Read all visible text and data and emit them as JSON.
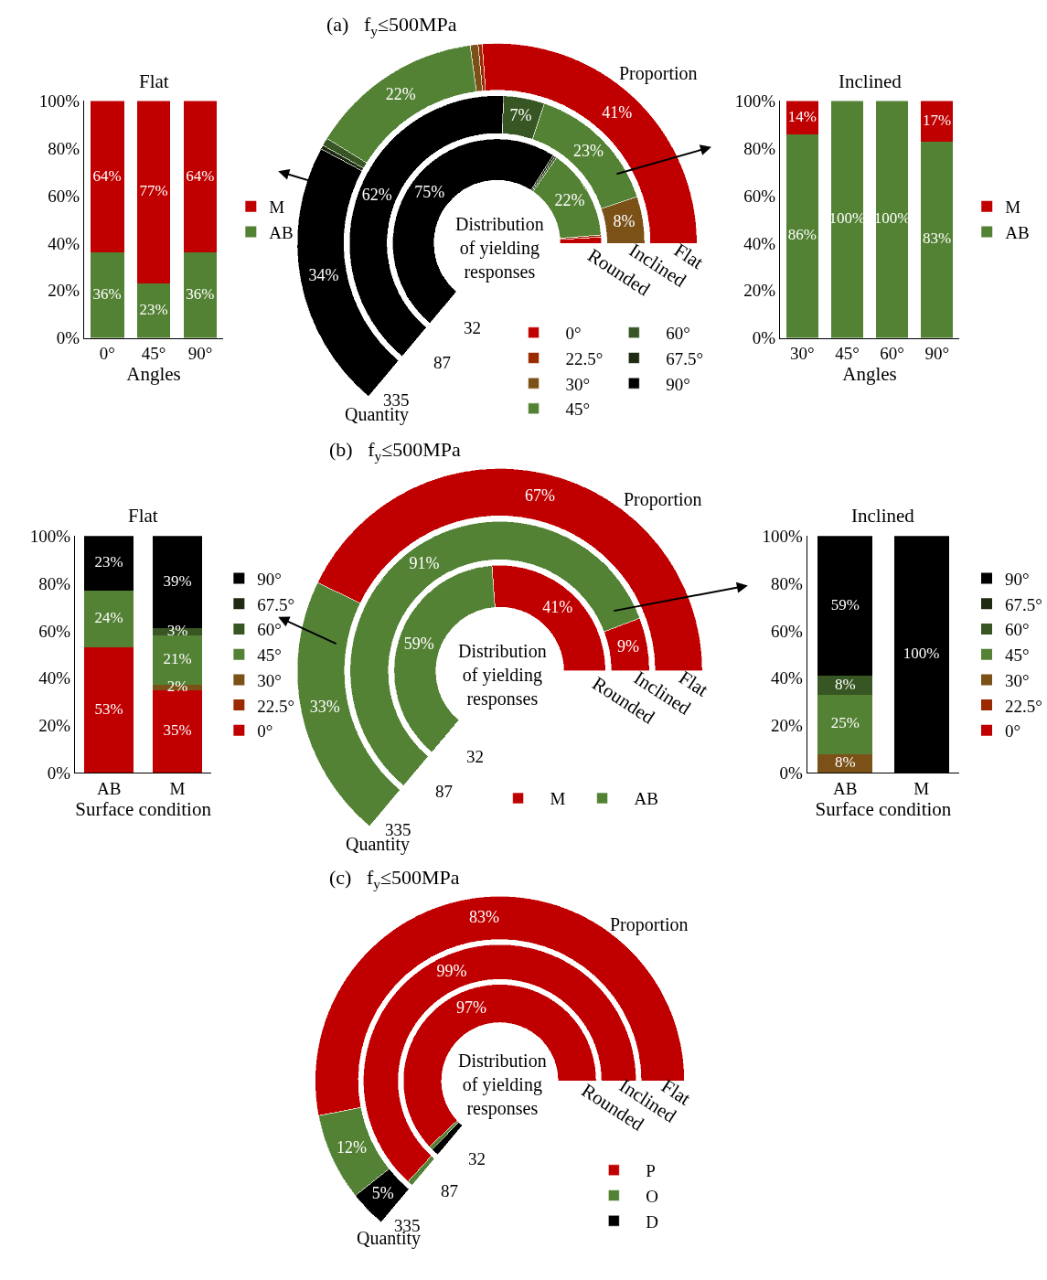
{
  "chart_data": [
    {
      "type": "bar",
      "title": "Flat",
      "xlabel": "Angles",
      "categories": [
        "0°",
        "45°",
        "90°"
      ],
      "stacked": true,
      "legend": "right",
      "ylim": [
        0,
        100
      ],
      "yticks": [
        {
          "value": 0,
          "label": "0%"
        },
        {
          "value": 20,
          "label": "20%"
        },
        {
          "value": 40,
          "label": "40%"
        },
        {
          "value": 60,
          "label": "60%"
        },
        {
          "value": 80,
          "label": "80%"
        },
        {
          "value": 100,
          "label": "100%"
        }
      ],
      "series": [
        {
          "name": "AB",
          "color": "#548235",
          "values": [
            36,
            23,
            36
          ],
          "value_labels": [
            "36%",
            "23%",
            "36%"
          ]
        },
        {
          "name": "M",
          "color": "#c00000",
          "values": [
            64,
            77,
            64
          ],
          "value_labels": [
            "64%",
            "77%",
            "64%"
          ]
        }
      ]
    },
    {
      "type": "donut",
      "title": "(a)   f$_{y}$≤500MPa",
      "legend": "bottom right",
      "categories": [
        "0°",
        "22.5°",
        "30°",
        "45°",
        "60°",
        "67.5°",
        "90°"
      ],
      "colors": [
        "#c00000",
        "#9c2a00",
        "#7b5118",
        "#548235",
        "#375623",
        "#1e2a12",
        "#000000"
      ],
      "annotations": [
        "Proportion",
        "Quantity",
        "Distribution\nof yielding\nresponses",
        "335",
        "87",
        "32"
      ],
      "series": [
        {
          "name": "Flat",
          "values": [
            41,
            0.5,
            1,
            22,
            1,
            0.5,
            34
          ],
          "value_labels": [
            "41%",
            null,
            null,
            "22%",
            null,
            null,
            "34%"
          ]
        },
        {
          "name": "Inclined",
          "values": [
            0,
            0,
            8,
            23,
            7,
            0,
            62
          ],
          "value_labels": [
            null,
            null,
            "8%",
            "23%",
            "7%",
            null,
            "62%"
          ]
        },
        {
          "name": "Rounded",
          "values": [
            1.5,
            0.5,
            0,
            22,
            0.5,
            0.5,
            75
          ],
          "value_labels": [
            null,
            null,
            null,
            "22%",
            null,
            null,
            "75%"
          ]
        }
      ]
    },
    {
      "type": "bar",
      "title": "Inclined",
      "xlabel": "Angles",
      "categories": [
        "30°",
        "45°",
        "60°",
        "90°"
      ],
      "stacked": true,
      "legend": "right",
      "ylim": [
        0,
        100
      ],
      "yticks": [
        {
          "value": 0,
          "label": "0%"
        },
        {
          "value": 20,
          "label": "20%"
        },
        {
          "value": 40,
          "label": "40%"
        },
        {
          "value": 60,
          "label": "60%"
        },
        {
          "value": 80,
          "label": "80%"
        },
        {
          "value": 100,
          "label": "100%"
        }
      ],
      "series": [
        {
          "name": "AB",
          "color": "#548235",
          "values": [
            86,
            100,
            100,
            83
          ],
          "value_labels": [
            "86%",
            "100%",
            "100%",
            "83%"
          ]
        },
        {
          "name": "M",
          "color": "#c00000",
          "values": [
            14,
            0,
            0,
            17
          ],
          "value_labels": [
            "14%",
            null,
            null,
            "17%"
          ]
        }
      ]
    },
    {
      "type": "bar",
      "title": "Flat",
      "xlabel": "Surface condition",
      "categories": [
        "AB",
        "M"
      ],
      "stacked": true,
      "legend": "right",
      "ylim": [
        0,
        100
      ],
      "yticks": [
        {
          "value": 0,
          "label": "0%"
        },
        {
          "value": 20,
          "label": "20%"
        },
        {
          "value": 40,
          "label": "40%"
        },
        {
          "value": 60,
          "label": "60%"
        },
        {
          "value": 80,
          "label": "80%"
        },
        {
          "value": 100,
          "label": "100%"
        }
      ],
      "series": [
        {
          "name": "0°",
          "color": "#c00000",
          "values": [
            53,
            35
          ],
          "value_labels": [
            "53%",
            "35%"
          ]
        },
        {
          "name": "22.5°",
          "color": "#9c2a00",
          "values": [
            0,
            0
          ],
          "value_labels": [
            null,
            null
          ]
        },
        {
          "name": "30°",
          "color": "#7b5118",
          "values": [
            0,
            2
          ],
          "value_labels": [
            null,
            "2%"
          ]
        },
        {
          "name": "45°",
          "color": "#548235",
          "values": [
            24,
            21
          ],
          "value_labels": [
            "24%",
            "21%"
          ]
        },
        {
          "name": "60°",
          "color": "#375623",
          "values": [
            0,
            3
          ],
          "value_labels": [
            null,
            "3%"
          ]
        },
        {
          "name": "67.5°",
          "color": "#1e2a12",
          "values": [
            0,
            0
          ],
          "value_labels": [
            null,
            null
          ]
        },
        {
          "name": "90°",
          "color": "#000000",
          "values": [
            23,
            39
          ],
          "value_labels": [
            "23%",
            "39%"
          ]
        }
      ]
    },
    {
      "type": "donut",
      "title": "(b)   f$_{y}$≤500MPa",
      "legend": "bottom",
      "categories": [
        "M",
        "AB"
      ],
      "colors": [
        "#c00000",
        "#548235"
      ],
      "annotations": [
        "Proportion",
        "Quantity",
        "Distribution\nof yielding\nresponses",
        "335",
        "87",
        "32"
      ],
      "series": [
        {
          "name": "Flat",
          "values": [
            67,
            33
          ],
          "value_labels": [
            "67%",
            "33%"
          ]
        },
        {
          "name": "Inclined",
          "values": [
            9,
            91
          ],
          "value_labels": [
            "9%",
            "91%"
          ]
        },
        {
          "name": "Rounded",
          "values": [
            41,
            59
          ],
          "value_labels": [
            "41%",
            "59%"
          ]
        }
      ]
    },
    {
      "type": "bar",
      "title": "Inclined",
      "xlabel": "Surface condition",
      "categories": [
        "AB",
        "M"
      ],
      "stacked": true,
      "legend": "right",
      "ylim": [
        0,
        100
      ],
      "yticks": [
        {
          "value": 0,
          "label": "0%"
        },
        {
          "value": 20,
          "label": "20%"
        },
        {
          "value": 40,
          "label": "40%"
        },
        {
          "value": 60,
          "label": "60%"
        },
        {
          "value": 80,
          "label": "80%"
        },
        {
          "value": 100,
          "label": "100%"
        }
      ],
      "series": [
        {
          "name": "0°",
          "color": "#c00000",
          "values": [
            0,
            0
          ],
          "value_labels": [
            null,
            null
          ]
        },
        {
          "name": "22.5°",
          "color": "#9c2a00",
          "values": [
            0,
            0
          ],
          "value_labels": [
            null,
            null
          ]
        },
        {
          "name": "30°",
          "color": "#7b5118",
          "values": [
            8,
            0
          ],
          "value_labels": [
            "8%",
            null
          ]
        },
        {
          "name": "45°",
          "color": "#548235",
          "values": [
            25,
            0
          ],
          "value_labels": [
            "25%",
            null
          ]
        },
        {
          "name": "60°",
          "color": "#375623",
          "values": [
            8,
            0
          ],
          "value_labels": [
            "8%",
            null
          ]
        },
        {
          "name": "67.5°",
          "color": "#1e2a12",
          "values": [
            0,
            0
          ],
          "value_labels": [
            null,
            null
          ]
        },
        {
          "name": "90°",
          "color": "#000000",
          "values": [
            59,
            100
          ],
          "value_labels": [
            "59%",
            "100%"
          ]
        }
      ]
    },
    {
      "type": "donut",
      "title": "(c)   f$_{y}$≤500MPa",
      "legend": "bottom right",
      "categories": [
        "P",
        "O",
        "D"
      ],
      "colors": [
        "#c00000",
        "#548235",
        "#000000"
      ],
      "annotations": [
        "Proportion",
        "Quantity",
        "Distribution\nof yielding\nresponses",
        "335",
        "87",
        "32"
      ],
      "series": [
        {
          "name": "Flat",
          "values": [
            83,
            12,
            5
          ],
          "value_labels": [
            "83%",
            "12%",
            "5%"
          ]
        },
        {
          "name": "Inclined",
          "values": [
            99,
            1,
            0
          ],
          "value_labels": [
            "99%",
            null,
            null
          ]
        },
        {
          "name": "Rounded",
          "values": [
            97,
            1,
            2
          ],
          "value_labels": [
            "97%",
            null,
            null
          ]
        }
      ]
    }
  ]
}
